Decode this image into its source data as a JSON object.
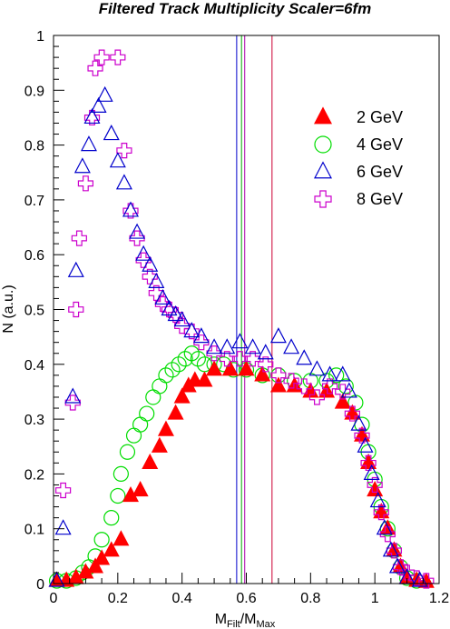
{
  "chart_data": {
    "type": "scatter",
    "title": "Filtered Track Multiplicity Scaler=6fm",
    "xlabel": {
      "main": "M",
      "sub1": "Filt",
      "mid": "/M",
      "sub2": "Max"
    },
    "ylabel": "N (a.u.)",
    "xlim": [
      0,
      1.2
    ],
    "ylim": [
      0,
      1
    ],
    "x_ticks": [
      "0",
      "0.2",
      "0.4",
      "0.6",
      "0.8",
      "1",
      "1.2"
    ],
    "y_ticks": [
      "0",
      "0.1",
      "0.2",
      "0.3",
      "0.4",
      "0.5",
      "0.6",
      "0.7",
      "0.8",
      "0.9",
      "1"
    ],
    "grid": false,
    "legend_position": "top-right",
    "vertical_lines": [
      {
        "x": 0.57,
        "color": "#0000cc"
      },
      {
        "x": 0.585,
        "color": "#00aa00"
      },
      {
        "x": 0.595,
        "color": "#aa00aa"
      },
      {
        "x": 0.68,
        "color": "#cc0033"
      }
    ],
    "series": [
      {
        "name": "2 GeV",
        "marker": "triangle-filled",
        "color": "#ff0000",
        "points": [
          [
            0.01,
            0.005
          ],
          [
            0.04,
            0.005
          ],
          [
            0.07,
            0.01
          ],
          [
            0.1,
            0.02
          ],
          [
            0.13,
            0.03
          ],
          [
            0.15,
            0.045
          ],
          [
            0.18,
            0.06
          ],
          [
            0.21,
            0.08
          ],
          [
            0.24,
            0.16
          ],
          [
            0.27,
            0.17
          ],
          [
            0.3,
            0.22
          ],
          [
            0.33,
            0.25
          ],
          [
            0.35,
            0.28
          ],
          [
            0.38,
            0.31
          ],
          [
            0.4,
            0.34
          ],
          [
            0.42,
            0.36
          ],
          [
            0.44,
            0.37
          ],
          [
            0.47,
            0.37
          ],
          [
            0.5,
            0.39
          ],
          [
            0.55,
            0.39
          ],
          [
            0.6,
            0.39
          ],
          [
            0.65,
            0.38
          ],
          [
            0.7,
            0.36
          ],
          [
            0.75,
            0.36
          ],
          [
            0.8,
            0.35
          ],
          [
            0.85,
            0.35
          ],
          [
            0.9,
            0.33
          ],
          [
            0.93,
            0.31
          ],
          [
            0.96,
            0.27
          ],
          [
            0.98,
            0.22
          ],
          [
            1.0,
            0.17
          ],
          [
            1.02,
            0.13
          ],
          [
            1.04,
            0.1
          ],
          [
            1.06,
            0.06
          ],
          [
            1.08,
            0.03
          ],
          [
            1.1,
            0.01
          ],
          [
            1.13,
            0.005
          ],
          [
            1.16,
            0.003
          ]
        ]
      },
      {
        "name": "4 GeV",
        "marker": "circle-open",
        "color": "#00dd00",
        "points": [
          [
            0.01,
            0.005
          ],
          [
            0.04,
            0.005
          ],
          [
            0.07,
            0.01
          ],
          [
            0.09,
            0.02
          ],
          [
            0.11,
            0.03
          ],
          [
            0.13,
            0.05
          ],
          [
            0.15,
            0.08
          ],
          [
            0.18,
            0.12
          ],
          [
            0.2,
            0.16
          ],
          [
            0.21,
            0.2
          ],
          [
            0.23,
            0.24
          ],
          [
            0.25,
            0.27
          ],
          [
            0.27,
            0.29
          ],
          [
            0.29,
            0.31
          ],
          [
            0.31,
            0.34
          ],
          [
            0.33,
            0.36
          ],
          [
            0.35,
            0.38
          ],
          [
            0.37,
            0.39
          ],
          [
            0.39,
            0.4
          ],
          [
            0.41,
            0.41
          ],
          [
            0.43,
            0.42
          ],
          [
            0.45,
            0.41
          ],
          [
            0.47,
            0.4
          ],
          [
            0.5,
            0.4
          ],
          [
            0.53,
            0.4
          ],
          [
            0.56,
            0.39
          ],
          [
            0.6,
            0.39
          ],
          [
            0.65,
            0.38
          ],
          [
            0.7,
            0.38
          ],
          [
            0.75,
            0.37
          ],
          [
            0.8,
            0.37
          ],
          [
            0.85,
            0.37
          ],
          [
            0.88,
            0.38
          ],
          [
            0.91,
            0.36
          ],
          [
            0.94,
            0.33
          ],
          [
            0.96,
            0.29
          ],
          [
            0.98,
            0.24
          ],
          [
            1.0,
            0.19
          ],
          [
            1.02,
            0.14
          ],
          [
            1.04,
            0.1
          ],
          [
            1.06,
            0.06
          ],
          [
            1.08,
            0.03
          ],
          [
            1.1,
            0.01
          ],
          [
            1.13,
            0.005
          ]
        ]
      },
      {
        "name": "6 GeV",
        "marker": "triangle-open",
        "color": "#0000cc",
        "points": [
          [
            0.01,
            0.005
          ],
          [
            0.03,
            0.1
          ],
          [
            0.06,
            0.34
          ],
          [
            0.07,
            0.57
          ],
          [
            0.09,
            0.76
          ],
          [
            0.11,
            0.8
          ],
          [
            0.12,
            0.85
          ],
          [
            0.14,
            0.87
          ],
          [
            0.16,
            0.89
          ],
          [
            0.18,
            0.82
          ],
          [
            0.2,
            0.77
          ],
          [
            0.22,
            0.73
          ],
          [
            0.24,
            0.68
          ],
          [
            0.26,
            0.64
          ],
          [
            0.28,
            0.6
          ],
          [
            0.3,
            0.58
          ],
          [
            0.32,
            0.55
          ],
          [
            0.34,
            0.52
          ],
          [
            0.36,
            0.5
          ],
          [
            0.38,
            0.49
          ],
          [
            0.4,
            0.48
          ],
          [
            0.43,
            0.46
          ],
          [
            0.46,
            0.45
          ],
          [
            0.5,
            0.43
          ],
          [
            0.54,
            0.43
          ],
          [
            0.58,
            0.44
          ],
          [
            0.62,
            0.43
          ],
          [
            0.66,
            0.42
          ],
          [
            0.7,
            0.45
          ],
          [
            0.74,
            0.43
          ],
          [
            0.78,
            0.41
          ],
          [
            0.82,
            0.39
          ],
          [
            0.86,
            0.38
          ],
          [
            0.9,
            0.38
          ],
          [
            0.92,
            0.35
          ],
          [
            0.95,
            0.29
          ],
          [
            0.97,
            0.25
          ],
          [
            0.99,
            0.2
          ],
          [
            1.01,
            0.15
          ],
          [
            1.03,
            0.1
          ],
          [
            1.05,
            0.06
          ],
          [
            1.07,
            0.03
          ],
          [
            1.1,
            0.01
          ],
          [
            1.14,
            0.005
          ]
        ]
      },
      {
        "name": "8 GeV",
        "marker": "cross-open",
        "color": "#cc00cc",
        "points": [
          [
            0.03,
            0.17
          ],
          [
            0.06,
            0.33
          ],
          [
            0.07,
            0.5
          ],
          [
            0.08,
            0.63
          ],
          [
            0.1,
            0.73
          ],
          [
            0.12,
            0.85
          ],
          [
            0.13,
            0.94
          ],
          [
            0.15,
            0.96
          ],
          [
            0.2,
            0.96
          ],
          [
            0.22,
            0.79
          ],
          [
            0.24,
            0.68
          ],
          [
            0.26,
            0.63
          ],
          [
            0.28,
            0.59
          ],
          [
            0.3,
            0.56
          ],
          [
            0.32,
            0.53
          ],
          [
            0.34,
            0.51
          ],
          [
            0.36,
            0.5
          ],
          [
            0.38,
            0.49
          ],
          [
            0.4,
            0.47
          ],
          [
            0.43,
            0.46
          ],
          [
            0.46,
            0.44
          ],
          [
            0.5,
            0.42
          ],
          [
            0.54,
            0.41
          ],
          [
            0.58,
            0.41
          ],
          [
            0.62,
            0.41
          ],
          [
            0.66,
            0.4
          ],
          [
            0.7,
            0.38
          ],
          [
            0.74,
            0.37
          ],
          [
            0.78,
            0.36
          ],
          [
            0.82,
            0.34
          ],
          [
            0.86,
            0.36
          ],
          [
            0.9,
            0.35
          ],
          [
            0.93,
            0.31
          ],
          [
            0.96,
            0.27
          ],
          [
            0.98,
            0.22
          ],
          [
            1.0,
            0.18
          ],
          [
            1.02,
            0.13
          ],
          [
            1.04,
            0.09
          ],
          [
            1.06,
            0.06
          ],
          [
            1.08,
            0.03
          ],
          [
            1.1,
            0.02
          ],
          [
            1.13,
            0.01
          ],
          [
            1.16,
            0.005
          ]
        ]
      }
    ]
  }
}
